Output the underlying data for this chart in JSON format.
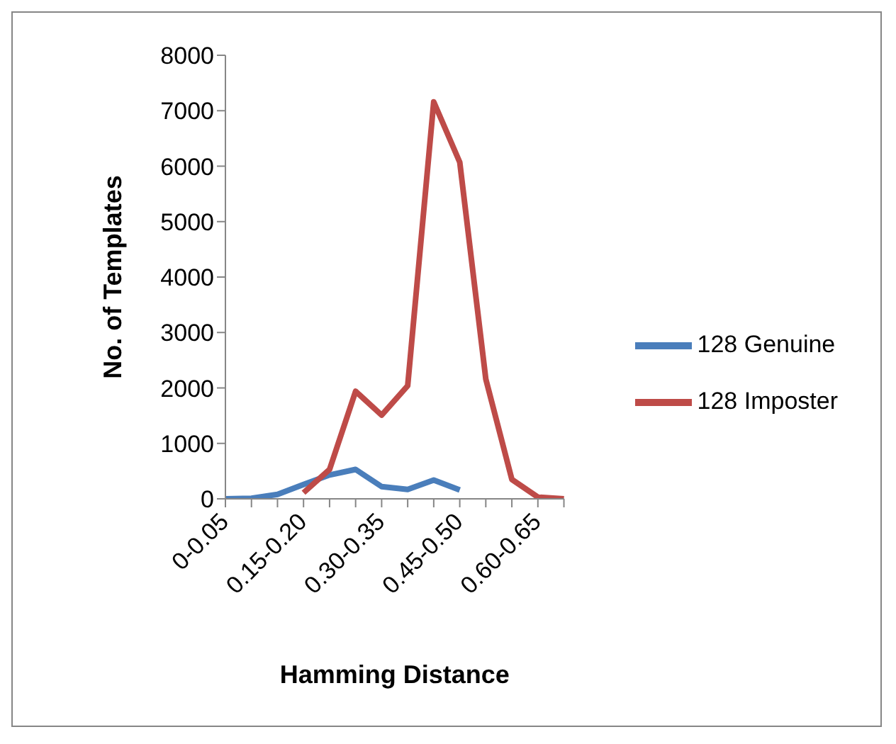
{
  "chart_data": {
    "type": "line",
    "xlabel": "Hamming Distance",
    "ylabel": "No. of Templates",
    "categories": [
      "0-0.05",
      null,
      null,
      "0.15-0.20",
      null,
      null,
      "0.30-0.35",
      null,
      null,
      "0.45-0.50",
      null,
      null,
      "0.60-0.65",
      null
    ],
    "series": [
      {
        "name": "128 Genuine",
        "color": "#4a7ebb",
        "values": [
          0,
          10,
          80,
          260,
          430,
          530,
          220,
          170,
          340,
          160,
          null,
          null,
          null,
          null
        ]
      },
      {
        "name": "128 Imposter",
        "color": "#be4b48",
        "values": [
          null,
          null,
          null,
          110,
          530,
          1940,
          1510,
          2040,
          7160,
          6070,
          2160,
          350,
          30,
          0
        ]
      }
    ],
    "ylim": [
      0,
      8000
    ],
    "yticks": [
      0,
      1000,
      2000,
      3000,
      4000,
      5000,
      6000,
      7000,
      8000
    ],
    "grid": false,
    "legend": "right",
    "marker": "none",
    "line_style": "solid"
  }
}
